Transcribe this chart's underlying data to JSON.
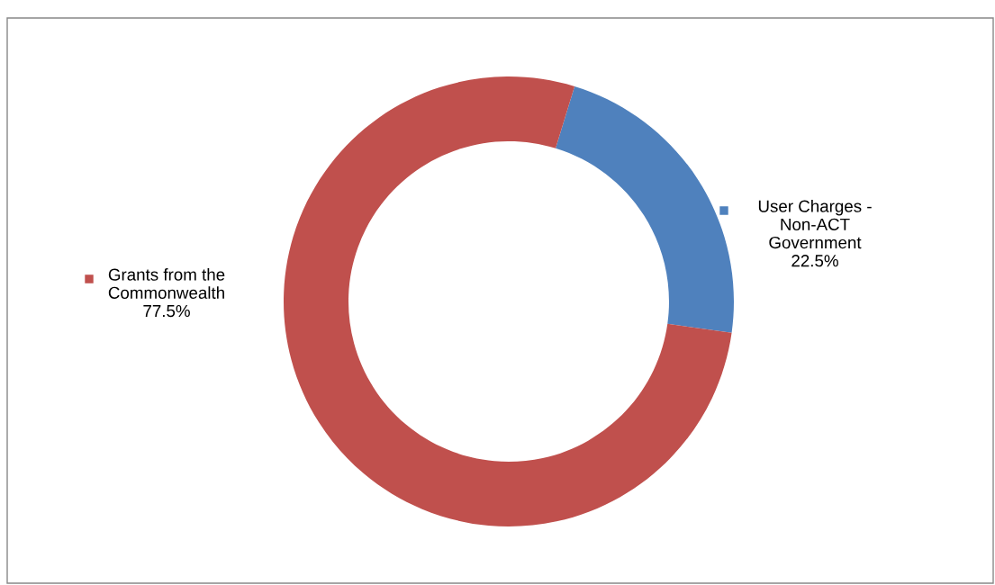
{
  "chart_data": {
    "type": "donut",
    "categories": [
      "User Charges -\nNon-ACT\nGovernment",
      "Grants from the\nCommonwealth"
    ],
    "values": [
      22.5,
      77.5
    ],
    "colors": [
      "#4f81bd",
      "#c0504d"
    ],
    "value_labels": [
      "22.5%",
      "77.5%"
    ],
    "legend": true
  }
}
